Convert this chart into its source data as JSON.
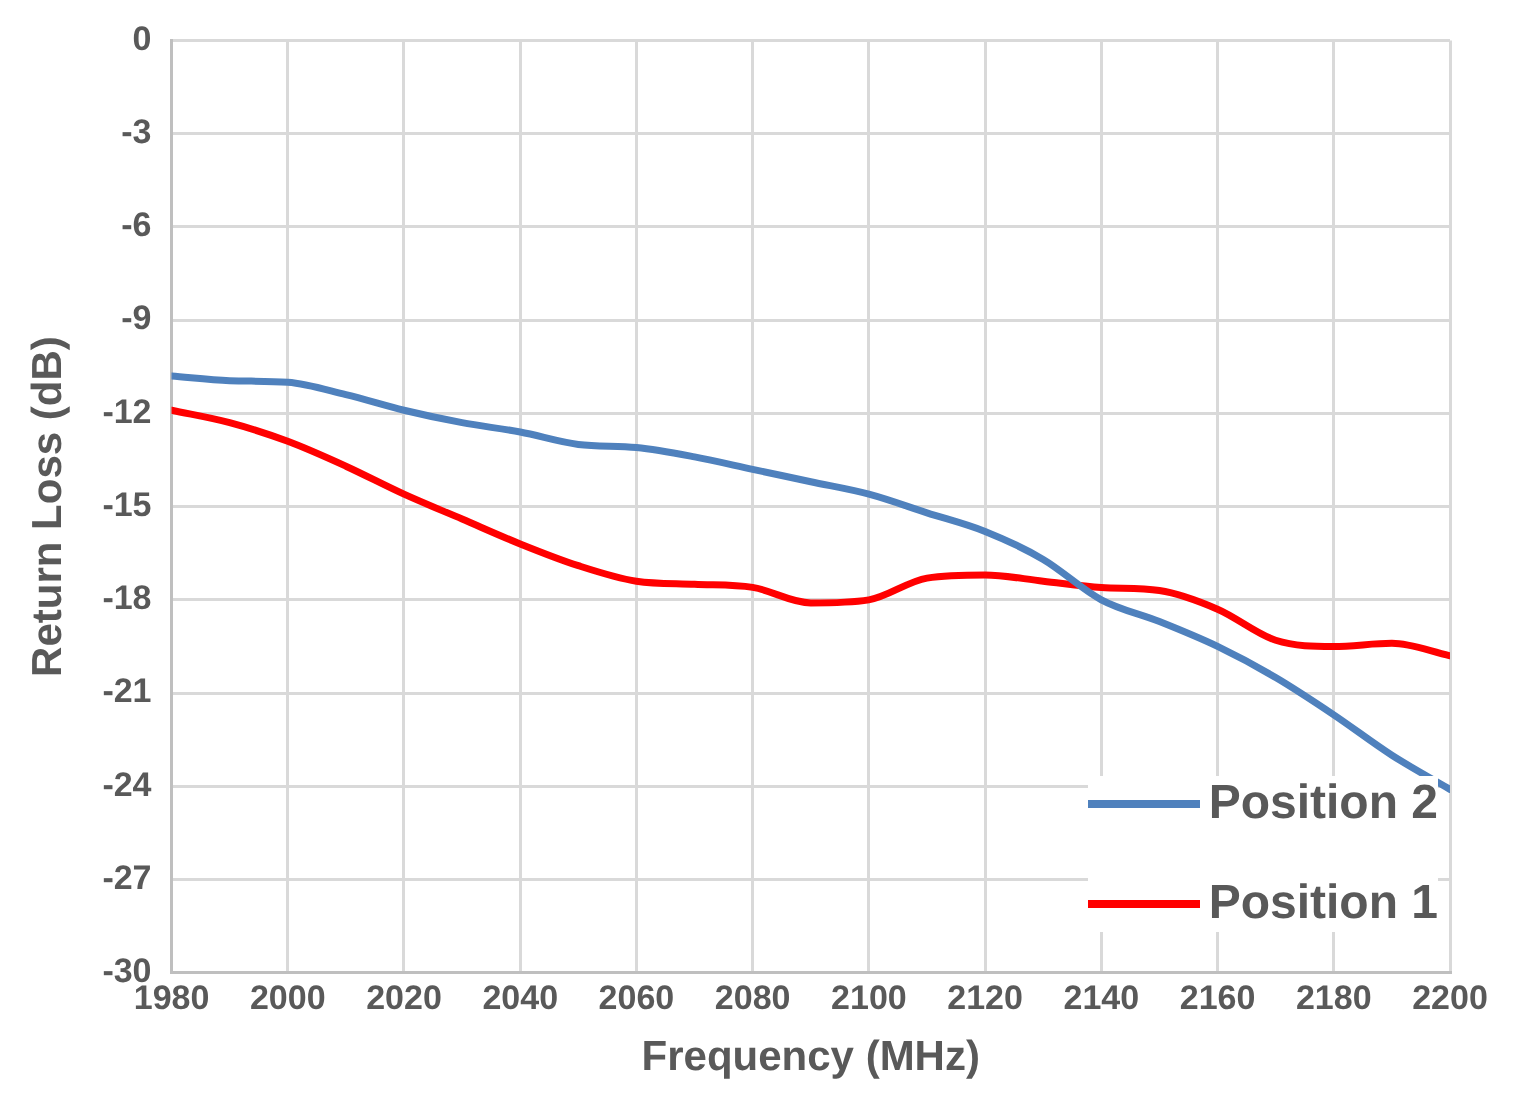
{
  "chart_data": {
    "type": "line",
    "xlabel": "Frequency (MHz)",
    "ylabel": "Return Loss (dB)",
    "x": [
      1980,
      1990,
      2000,
      2010,
      2020,
      2030,
      2040,
      2050,
      2060,
      2070,
      2080,
      2090,
      2100,
      2110,
      2120,
      2130,
      2140,
      2150,
      2160,
      2170,
      2180,
      2190,
      2200
    ],
    "series": [
      {
        "name": "Position 2",
        "color": "#4f81bd",
        "values": [
          -10.8,
          -10.95,
          -11.0,
          -11.4,
          -11.9,
          -12.3,
          -12.6,
          -13.0,
          -13.1,
          -13.4,
          -13.8,
          -14.2,
          -14.6,
          -15.2,
          -15.8,
          -16.7,
          -18.0,
          -18.7,
          -19.5,
          -20.5,
          -21.7,
          -23.0,
          -24.1
        ]
      },
      {
        "name": "Position 1",
        "color": "#ff0000",
        "values": [
          -11.9,
          -12.3,
          -12.9,
          -13.7,
          -14.6,
          -15.4,
          -16.2,
          -16.9,
          -17.4,
          -17.5,
          -17.6,
          -18.1,
          -18.0,
          -17.3,
          -17.2,
          -17.4,
          -17.6,
          -17.7,
          -18.3,
          -19.3,
          -19.5,
          -19.4,
          -19.8
        ]
      }
    ],
    "xlim": [
      1980,
      2200
    ],
    "xticks": [
      1980,
      2000,
      2020,
      2040,
      2060,
      2080,
      2100,
      2120,
      2140,
      2160,
      2180,
      2200
    ],
    "ylim": [
      -30,
      0
    ],
    "yticks": [
      0,
      -3,
      -6,
      -9,
      -12,
      -15,
      -18,
      -21,
      -24,
      -27,
      -30
    ],
    "grid": true,
    "legend": "bottom right",
    "marker": "none",
    "line_style": "solid"
  }
}
